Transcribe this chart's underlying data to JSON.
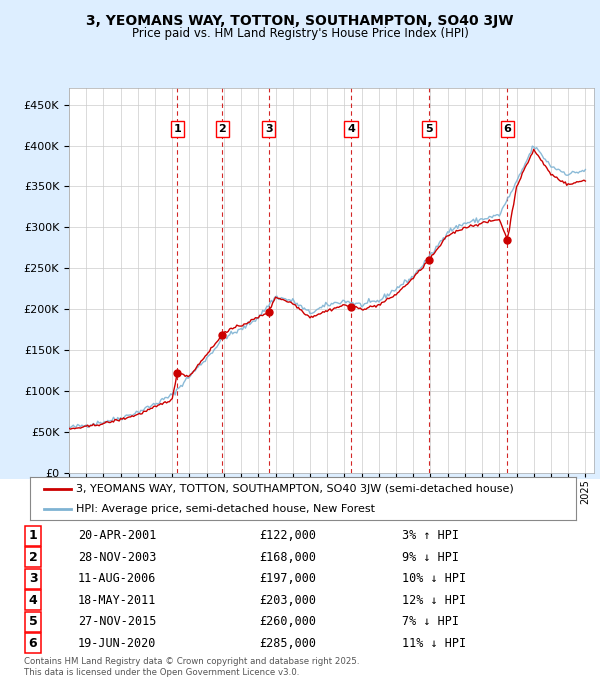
{
  "title": "3, YEOMANS WAY, TOTTON, SOUTHAMPTON, SO40 3JW",
  "subtitle": "Price paid vs. HM Land Registry's House Price Index (HPI)",
  "sale_dates_num": [
    2001.3,
    2003.91,
    2006.61,
    2011.38,
    2015.91,
    2020.47
  ],
  "sale_prices": [
    122000,
    168000,
    197000,
    203000,
    260000,
    285000
  ],
  "sale_labels": [
    "1",
    "2",
    "3",
    "4",
    "5",
    "6"
  ],
  "sale_info": [
    {
      "num": "1",
      "date": "20-APR-2001",
      "price": "£122,000",
      "pct": "3%",
      "dir": "↑"
    },
    {
      "num": "2",
      "date": "28-NOV-2003",
      "price": "£168,000",
      "pct": "9%",
      "dir": "↓"
    },
    {
      "num": "3",
      "date": "11-AUG-2006",
      "price": "£197,000",
      "pct": "10%",
      "dir": "↓"
    },
    {
      "num": "4",
      "date": "18-MAY-2011",
      "price": "£203,000",
      "pct": "12%",
      "dir": "↓"
    },
    {
      "num": "5",
      "date": "27-NOV-2015",
      "price": "£260,000",
      "pct": "7%",
      "dir": "↓"
    },
    {
      "num": "6",
      "date": "19-JUN-2020",
      "price": "£285,000",
      "pct": "11%",
      "dir": "↓"
    }
  ],
  "hpi_color": "#7fb3d3",
  "price_color": "#cc0000",
  "dashed_line_color": "#cc0000",
  "background_color": "#ddeeff",
  "plot_bg_color": "#ffffff",
  "bottom_bg_color": "#ffffff",
  "grid_color": "#cccccc",
  "ylim": [
    0,
    470000
  ],
  "xlim_start": 1995.0,
  "xlim_end": 2025.5,
  "ylabel_ticks": [
    0,
    50000,
    100000,
    150000,
    200000,
    250000,
    300000,
    350000,
    400000,
    450000
  ],
  "footer": "Contains HM Land Registry data © Crown copyright and database right 2025.\nThis data is licensed under the Open Government Licence v3.0.",
  "legend_label_red": "3, YEOMANS WAY, TOTTON, SOUTHAMPTON, SO40 3JW (semi-detached house)",
  "legend_label_blue": "HPI: Average price, semi-detached house, New Forest"
}
